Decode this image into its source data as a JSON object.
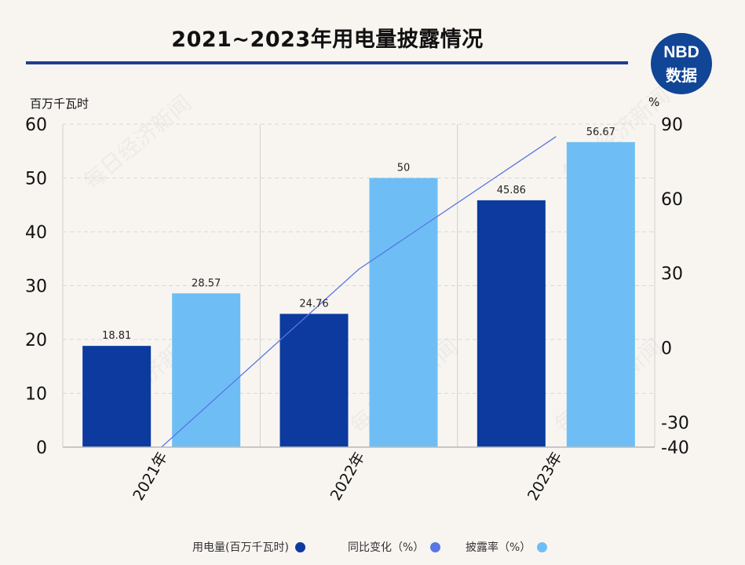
{
  "header": {
    "title": "2021~2023年用电量披露情况",
    "logo_top": "NBD",
    "logo_bottom": "数据"
  },
  "watermark_text": "每日经济新闻",
  "colors": {
    "electricity": "#0c3a9e",
    "yoy": "#5877e3",
    "disclosure": "#6ebef5",
    "title_rule": "#1f3f8f"
  },
  "chart_data": {
    "type": "bar",
    "categories": [
      "2021年",
      "2022年",
      "2023年"
    ],
    "y_left": {
      "label": "百万千瓦时",
      "ticks": [
        0,
        10,
        20,
        30,
        40,
        50,
        60
      ],
      "range": [
        0,
        60
      ]
    },
    "y_right": {
      "label": "%",
      "ticks": [
        -40,
        -30,
        0,
        30,
        60,
        90
      ],
      "range": [
        -40,
        90
      ]
    },
    "series": [
      {
        "name": "用电量(百万千瓦时)",
        "type": "bar",
        "axis": "left",
        "values": [
          18.81,
          24.76,
          45.86
        ],
        "labels": [
          "18.81",
          "24.76",
          "45.86"
        ]
      },
      {
        "name": "披露率（%）",
        "type": "bar",
        "axis": "left",
        "values": [
          28.57,
          50,
          56.67
        ],
        "labels": [
          "28.57",
          "50",
          "56.67"
        ]
      },
      {
        "name": "同比变化（%）",
        "type": "line",
        "axis": "right",
        "values": [
          -40,
          31.6,
          85
        ]
      }
    ],
    "legend": {
      "position": "bottom",
      "items": [
        {
          "label": "用电量(百万千瓦时)",
          "color": "#0c3a9e"
        },
        {
          "label": "同比变化（%）",
          "color": "#5877e3"
        },
        {
          "label": "披露率（%）",
          "color": "#6ebef5"
        }
      ]
    },
    "grid": true
  }
}
